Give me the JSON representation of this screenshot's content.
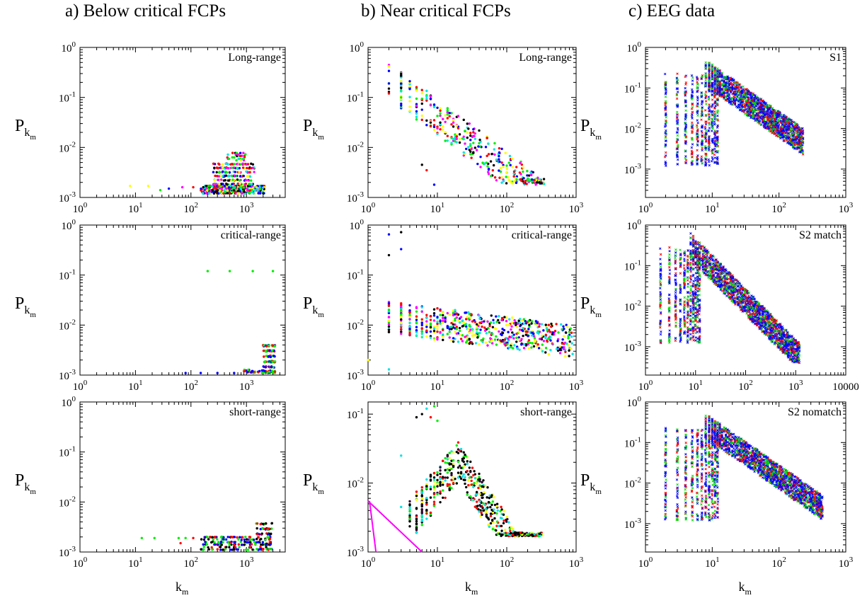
{
  "figure": {
    "column_titles": [
      "a) Below critical FCPs",
      "b) Near critical FCPs",
      "c) EEG data"
    ],
    "y_axis_symbol": "P",
    "y_axis_subscript": "k",
    "y_axis_subsubscript": "m",
    "x_axis_symbol": "k",
    "x_axis_subscript": "m"
  },
  "chart_data": [
    {
      "id": "a1",
      "type": "scatter",
      "title": "Long-range",
      "xscale": "log",
      "yscale": "log",
      "xlim": [
        1,
        5000
      ],
      "ylim": [
        0.001,
        1
      ],
      "xticks": [
        {
          "v": 1,
          "l": "10^0"
        },
        {
          "v": 10,
          "l": "10^1"
        },
        {
          "v": 100,
          "l": "10^2"
        },
        {
          "v": 1000,
          "l": "10^3"
        }
      ],
      "yticks": [
        {
          "v": 0.001,
          "l": "10^-3"
        },
        {
          "v": 0.01,
          "l": "10^-2"
        },
        {
          "v": 0.1,
          "l": "10^-1"
        },
        {
          "v": 1,
          "l": "10^0"
        }
      ],
      "show_ylabel": true,
      "show_xlabel": false,
      "marker": "dot",
      "colors": [
        "#000000",
        "#ff0000",
        "#00ee00",
        "#0000ff",
        "#00e5e5",
        "#ff00ff",
        "#ffff00"
      ],
      "isolated": [
        {
          "x": 8,
          "y": 0.0017
        },
        {
          "x": 17,
          "y": 0.0017
        },
        {
          "x": 28,
          "y": 0.0014
        },
        {
          "x": 40,
          "y": 0.0015
        },
        {
          "x": 70,
          "y": 0.0016
        },
        {
          "x": 110,
          "y": 0.0016
        }
      ],
      "bands": [
        {
          "x": [
            150,
            2100
          ],
          "y": [
            0.0012,
            0.0018
          ],
          "n": 320
        },
        {
          "x": [
            250,
            1400
          ],
          "y": [
            0.0018,
            0.0055
          ],
          "n": 200
        },
        {
          "x": [
            450,
            1000
          ],
          "y": [
            0.0055,
            0.0082
          ],
          "n": 30
        }
      ]
    },
    {
      "id": "b1",
      "type": "scatter",
      "title": "Long-range",
      "xscale": "log",
      "yscale": "log",
      "xlim": [
        1,
        1000
      ],
      "ylim": [
        0.001,
        1
      ],
      "xticks": [
        {
          "v": 1,
          "l": "10^0"
        },
        {
          "v": 10,
          "l": "10^1"
        },
        {
          "v": 100,
          "l": "10^2"
        },
        {
          "v": 1000,
          "l": "10^3"
        }
      ],
      "yticks": [
        {
          "v": 0.001,
          "l": "10^-3"
        },
        {
          "v": 0.01,
          "l": "10^-2"
        },
        {
          "v": 0.1,
          "l": "10^-1"
        },
        {
          "v": 1,
          "l": "10^0"
        }
      ],
      "show_ylabel": true,
      "show_xlabel": false,
      "marker": "dot",
      "colors": [
        "#000000",
        "#ff0000",
        "#00ee00",
        "#0000ff",
        "#00e5e5",
        "#ff00ff",
        "#ffff00"
      ],
      "isolated": [
        {
          "x": 2,
          "y": 0.15
        },
        {
          "x": 2,
          "y": 0.12
        },
        {
          "x": 3,
          "y": 0.1
        },
        {
          "x": 6,
          "y": 0.0045
        },
        {
          "x": 7,
          "y": 0.0035
        },
        {
          "x": 9,
          "y": 0.0018
        }
      ],
      "powerlaw": {
        "x": [
          2,
          350
        ],
        "a": 0.45,
        "b": -1.05,
        "logspread": 0.75,
        "n": 380,
        "ymin": 0.0018
      }
    },
    {
      "id": "c1",
      "type": "scatter",
      "title": "S1",
      "xscale": "log",
      "yscale": "log",
      "xlim": [
        1,
        1000
      ],
      "ylim": [
        0.0002,
        1
      ],
      "xticks": [
        {
          "v": 1,
          "l": "10^0"
        },
        {
          "v": 10,
          "l": "10^1"
        },
        {
          "v": 100,
          "l": "10^2"
        },
        {
          "v": 1000,
          "l": "10^3"
        }
      ],
      "yticks": [
        {
          "v": 0.001,
          "l": "10^-3"
        },
        {
          "v": 0.01,
          "l": "10^-2"
        },
        {
          "v": 0.1,
          "l": "10^-1"
        },
        {
          "v": 1,
          "l": "10^0"
        }
      ],
      "show_ylabel": true,
      "show_xlabel": false,
      "marker": "cross",
      "colors": [
        "#ff0000",
        "#00dd00",
        "#0000ff",
        "#0000ff"
      ],
      "columns": {
        "x": [
          2,
          12
        ],
        "ylo": 0.0012,
        "yhi": 0.25
      },
      "powerlaw": {
        "x": [
          8,
          230
        ],
        "a": 2.5,
        "b": -1.15,
        "logspread": 0.65,
        "n": 1600,
        "ymin": 0.0012
      }
    },
    {
      "id": "a2",
      "type": "scatter",
      "title": "critical-range",
      "xscale": "log",
      "yscale": "log",
      "xlim": [
        1,
        5000
      ],
      "ylim": [
        0.001,
        1
      ],
      "xticks": [
        {
          "v": 1,
          "l": "10^0"
        },
        {
          "v": 10,
          "l": "10^1"
        },
        {
          "v": 100,
          "l": "10^2"
        },
        {
          "v": 1000,
          "l": "10^3"
        }
      ],
      "yticks": [
        {
          "v": 0.001,
          "l": "10^-3"
        },
        {
          "v": 0.01,
          "l": "10^-2"
        },
        {
          "v": 0.1,
          "l": "10^-1"
        },
        {
          "v": 1,
          "l": "10^0"
        }
      ],
      "show_ylabel": true,
      "show_xlabel": false,
      "marker": "dot",
      "colors": [
        "#ff0000",
        "#0000ff",
        "#00ee00"
      ],
      "isolated": [
        {
          "x": 200,
          "y": 0.12,
          "c": "#00ee00"
        },
        {
          "x": 500,
          "y": 0.12,
          "c": "#00ee00"
        },
        {
          "x": 1300,
          "y": 0.12,
          "c": "#00ee00"
        },
        {
          "x": 3000,
          "y": 0.12,
          "c": "#00ee00"
        },
        {
          "x": 80,
          "y": 0.0011,
          "c": "#0000ff"
        },
        {
          "x": 150,
          "y": 0.0011,
          "c": "#0000ff"
        },
        {
          "x": 300,
          "y": 0.0011,
          "c": "#0000ff"
        },
        {
          "x": 600,
          "y": 0.0011,
          "c": "#0000ff"
        }
      ],
      "bands": [
        {
          "x": [
            2000,
            3300
          ],
          "y": [
            0.0011,
            0.0048
          ],
          "n": 110
        },
        {
          "x": [
            900,
            3300
          ],
          "y": [
            0.0011,
            0.0013
          ],
          "n": 40
        }
      ]
    },
    {
      "id": "b2",
      "type": "scatter",
      "title": "critical-range",
      "xscale": "log",
      "yscale": "log",
      "xlim": [
        1,
        1000
      ],
      "ylim": [
        0.001,
        1
      ],
      "xticks": [
        {
          "v": 1,
          "l": "10^0"
        },
        {
          "v": 10,
          "l": "10^1"
        },
        {
          "v": 100,
          "l": "10^2"
        },
        {
          "v": 1000,
          "l": "10^3"
        }
      ],
      "yticks": [
        {
          "v": 0.001,
          "l": "10^-3"
        },
        {
          "v": 0.01,
          "l": "10^-2"
        },
        {
          "v": 0.1,
          "l": "10^-1"
        },
        {
          "v": 1,
          "l": "10^0"
        }
      ],
      "show_ylabel": true,
      "show_xlabel": false,
      "marker": "dot",
      "colors": [
        "#000000",
        "#ff0000",
        "#00ee00",
        "#0000ff",
        "#00e5e5",
        "#ff00ff",
        "#ffff00"
      ],
      "isolated": [
        {
          "x": 2,
          "y": 0.65,
          "c": "#0000ff"
        },
        {
          "x": 3,
          "y": 0.72,
          "c": "#000000"
        },
        {
          "x": 2,
          "y": 0.25,
          "c": "#000000"
        },
        {
          "x": 3,
          "y": 0.33,
          "c": "#0000ff"
        },
        {
          "x": 1,
          "y": 0.002,
          "c": "#ffff00"
        },
        {
          "x": 2,
          "y": 0.0013,
          "c": "#00e5e5"
        }
      ],
      "powerlaw": {
        "x": [
          2,
          900
        ],
        "a": 0.016,
        "b": -0.18,
        "logspread": 0.65,
        "n": 620,
        "ymin": 0.0012
      }
    },
    {
      "id": "c2",
      "type": "scatter",
      "title": "S2 match",
      "xscale": "log",
      "yscale": "log",
      "xlim": [
        1,
        10000
      ],
      "ylim": [
        0.0002,
        1
      ],
      "xticks": [
        {
          "v": 1,
          "l": "10^0"
        },
        {
          "v": 10,
          "l": "10^1"
        },
        {
          "v": 100,
          "l": "10^2"
        },
        {
          "v": 1000,
          "l": "10^3"
        },
        {
          "v": 10000,
          "l": "10000"
        }
      ],
      "yticks": [
        {
          "v": 0.001,
          "l": "10^-3"
        },
        {
          "v": 0.01,
          "l": "10^-2"
        },
        {
          "v": 0.1,
          "l": "10^-1"
        },
        {
          "v": 1,
          "l": "10^0"
        }
      ],
      "show_ylabel": true,
      "show_xlabel": false,
      "marker": "cross",
      "colors": [
        "#ff0000",
        "#00dd00",
        "#0000ff",
        "#0000ff"
      ],
      "columns": {
        "x": [
          2,
          12
        ],
        "ylo": 0.0012,
        "yhi": 0.3
      },
      "powerlaw": {
        "x": [
          8,
          1200
        ],
        "a": 4.0,
        "b": -1.25,
        "logspread": 0.65,
        "n": 1700,
        "ymin": 0.0004
      }
    },
    {
      "id": "a3",
      "type": "scatter",
      "title": "short-range",
      "xscale": "log",
      "yscale": "log",
      "xlim": [
        1,
        5000
      ],
      "ylim": [
        0.001,
        1
      ],
      "xticks": [
        {
          "v": 1,
          "l": "10^0"
        },
        {
          "v": 10,
          "l": "10^1"
        },
        {
          "v": 100,
          "l": "10^2"
        },
        {
          "v": 1000,
          "l": "10^3"
        }
      ],
      "yticks": [
        {
          "v": 0.001,
          "l": "10^-3"
        },
        {
          "v": 0.01,
          "l": "10^-2"
        },
        {
          "v": 0.1,
          "l": "10^-1"
        },
        {
          "v": 1,
          "l": "10^0"
        }
      ],
      "show_ylabel": true,
      "show_xlabel": true,
      "marker": "dot",
      "colors": [
        "#ff0000",
        "#0000ff",
        "#00ee00",
        "#000000"
      ],
      "isolated": [
        {
          "x": 13,
          "y": 0.0019,
          "c": "#00ee00"
        },
        {
          "x": 22,
          "y": 0.0019,
          "c": "#00ee00"
        },
        {
          "x": 60,
          "y": 0.0019,
          "c": "#00ee00"
        },
        {
          "x": 80,
          "y": 0.0019,
          "c": "#00ee00"
        },
        {
          "x": 65,
          "y": 0.0015,
          "c": "#ff0000"
        },
        {
          "x": 110,
          "y": 0.0019,
          "c": "#ff0000"
        }
      ],
      "bands": [
        {
          "x": [
            150,
            2800
          ],
          "y": [
            0.0011,
            0.0022
          ],
          "n": 170
        },
        {
          "x": [
            1500,
            2900
          ],
          "y": [
            0.0011,
            0.0045
          ],
          "n": 80
        }
      ]
    },
    {
      "id": "b3",
      "type": "scatter",
      "title": "short-range",
      "xscale": "log",
      "yscale": "log",
      "xlim": [
        1,
        1000
      ],
      "ylim": [
        0.001,
        0.15
      ],
      "xticks": [
        {
          "v": 1,
          "l": "10^0"
        },
        {
          "v": 10,
          "l": "10^1"
        },
        {
          "v": 100,
          "l": "10^2"
        },
        {
          "v": 1000,
          "l": "10^3"
        }
      ],
      "yticks": [
        {
          "v": 0.001,
          "l": "10^-3"
        },
        {
          "v": 0.01,
          "l": "10^-2"
        },
        {
          "v": 0.1,
          "l": "10^-1"
        }
      ],
      "show_ylabel": true,
      "show_xlabel": true,
      "marker": "dot",
      "colors": [
        "#000000",
        "#000000",
        "#000000",
        "#330033",
        "#ff0000",
        "#00ee00",
        "#00e5e5",
        "#ffff00"
      ],
      "isolated": [
        {
          "x": 6,
          "y": 0.1
        },
        {
          "x": 7,
          "y": 0.12
        },
        {
          "x": 9,
          "y": 0.13
        },
        {
          "x": 8,
          "y": 0.09
        },
        {
          "x": 5,
          "y": 0.09
        },
        {
          "x": 10,
          "y": 0.08
        },
        {
          "x": 3,
          "y": 0.025
        },
        {
          "x": 3,
          "y": 0.0045
        },
        {
          "x": 4,
          "y": 0.003
        },
        {
          "x": 5,
          "y": 0.0065
        }
      ],
      "hump": {
        "x": [
          4,
          320
        ],
        "peak": 20,
        "a": 0.02,
        "b": -0.95,
        "logspread": 0.6,
        "n": 600,
        "ymin": 0.0017
      },
      "lines": [
        {
          "color": "#ff00ff",
          "points": [
            {
              "x": 1,
              "y": 0.0055
            },
            {
              "x": 6,
              "y": 0.001
            }
          ]
        },
        {
          "color": "#ff00ff",
          "points": [
            {
              "x": 1.05,
              "y": 0.0055
            },
            {
              "x": 1.3,
              "y": 0.001
            }
          ]
        }
      ]
    },
    {
      "id": "c3",
      "type": "scatter",
      "title": "S2 nomatch",
      "xscale": "log",
      "yscale": "log",
      "xlim": [
        1,
        1000
      ],
      "ylim": [
        0.0002,
        1
      ],
      "xticks": [
        {
          "v": 1,
          "l": "10^0"
        },
        {
          "v": 10,
          "l": "10^1"
        },
        {
          "v": 100,
          "l": "10^2"
        },
        {
          "v": 1000,
          "l": "10^3"
        }
      ],
      "yticks": [
        {
          "v": 0.001,
          "l": "10^-3"
        },
        {
          "v": 0.01,
          "l": "10^-2"
        },
        {
          "v": 0.1,
          "l": "10^-1"
        },
        {
          "v": 1,
          "l": "10^0"
        }
      ],
      "show_ylabel": true,
      "show_xlabel": true,
      "marker": "cross",
      "colors": [
        "#ff0000",
        "#00dd00",
        "#0000ff",
        "#0000ff"
      ],
      "columns": {
        "x": [
          2,
          12
        ],
        "ylo": 0.0012,
        "yhi": 0.25
      },
      "powerlaw": {
        "x": [
          8,
          450
        ],
        "a": 2.8,
        "b": -1.15,
        "logspread": 0.6,
        "n": 1700,
        "ymin": 0.0007
      }
    }
  ]
}
